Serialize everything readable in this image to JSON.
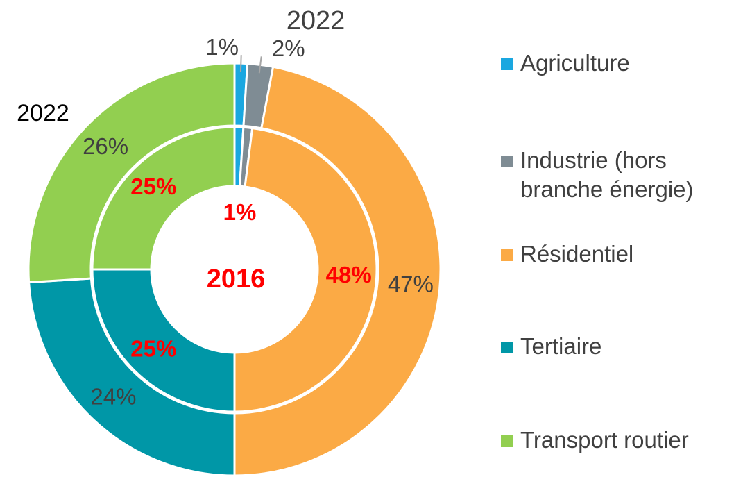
{
  "chart_data": {
    "type": "donut",
    "categories": [
      "Agriculture",
      "Industrie (hors branche énergie)",
      "Résidentiel",
      "Tertiaire",
      "Transport routier"
    ],
    "colors": [
      "#1aa7e0",
      "#7f8c94",
      "#fbaa45",
      "#0097a7",
      "#92cf50"
    ],
    "series": [
      {
        "name": "2016",
        "values": [
          1,
          1,
          48,
          25,
          25
        ],
        "value_labels": [
          null,
          "1%",
          "48%",
          "25%",
          "25%"
        ],
        "label_color": "#ff0000"
      },
      {
        "name": "2022",
        "values": [
          1,
          2,
          47,
          24,
          26
        ],
        "value_labels": [
          "1%",
          "2%",
          "47%",
          "24%",
          "26%"
        ],
        "label_color": "#404040"
      }
    ],
    "annotations": [
      "2022"
    ],
    "legend": "right"
  }
}
